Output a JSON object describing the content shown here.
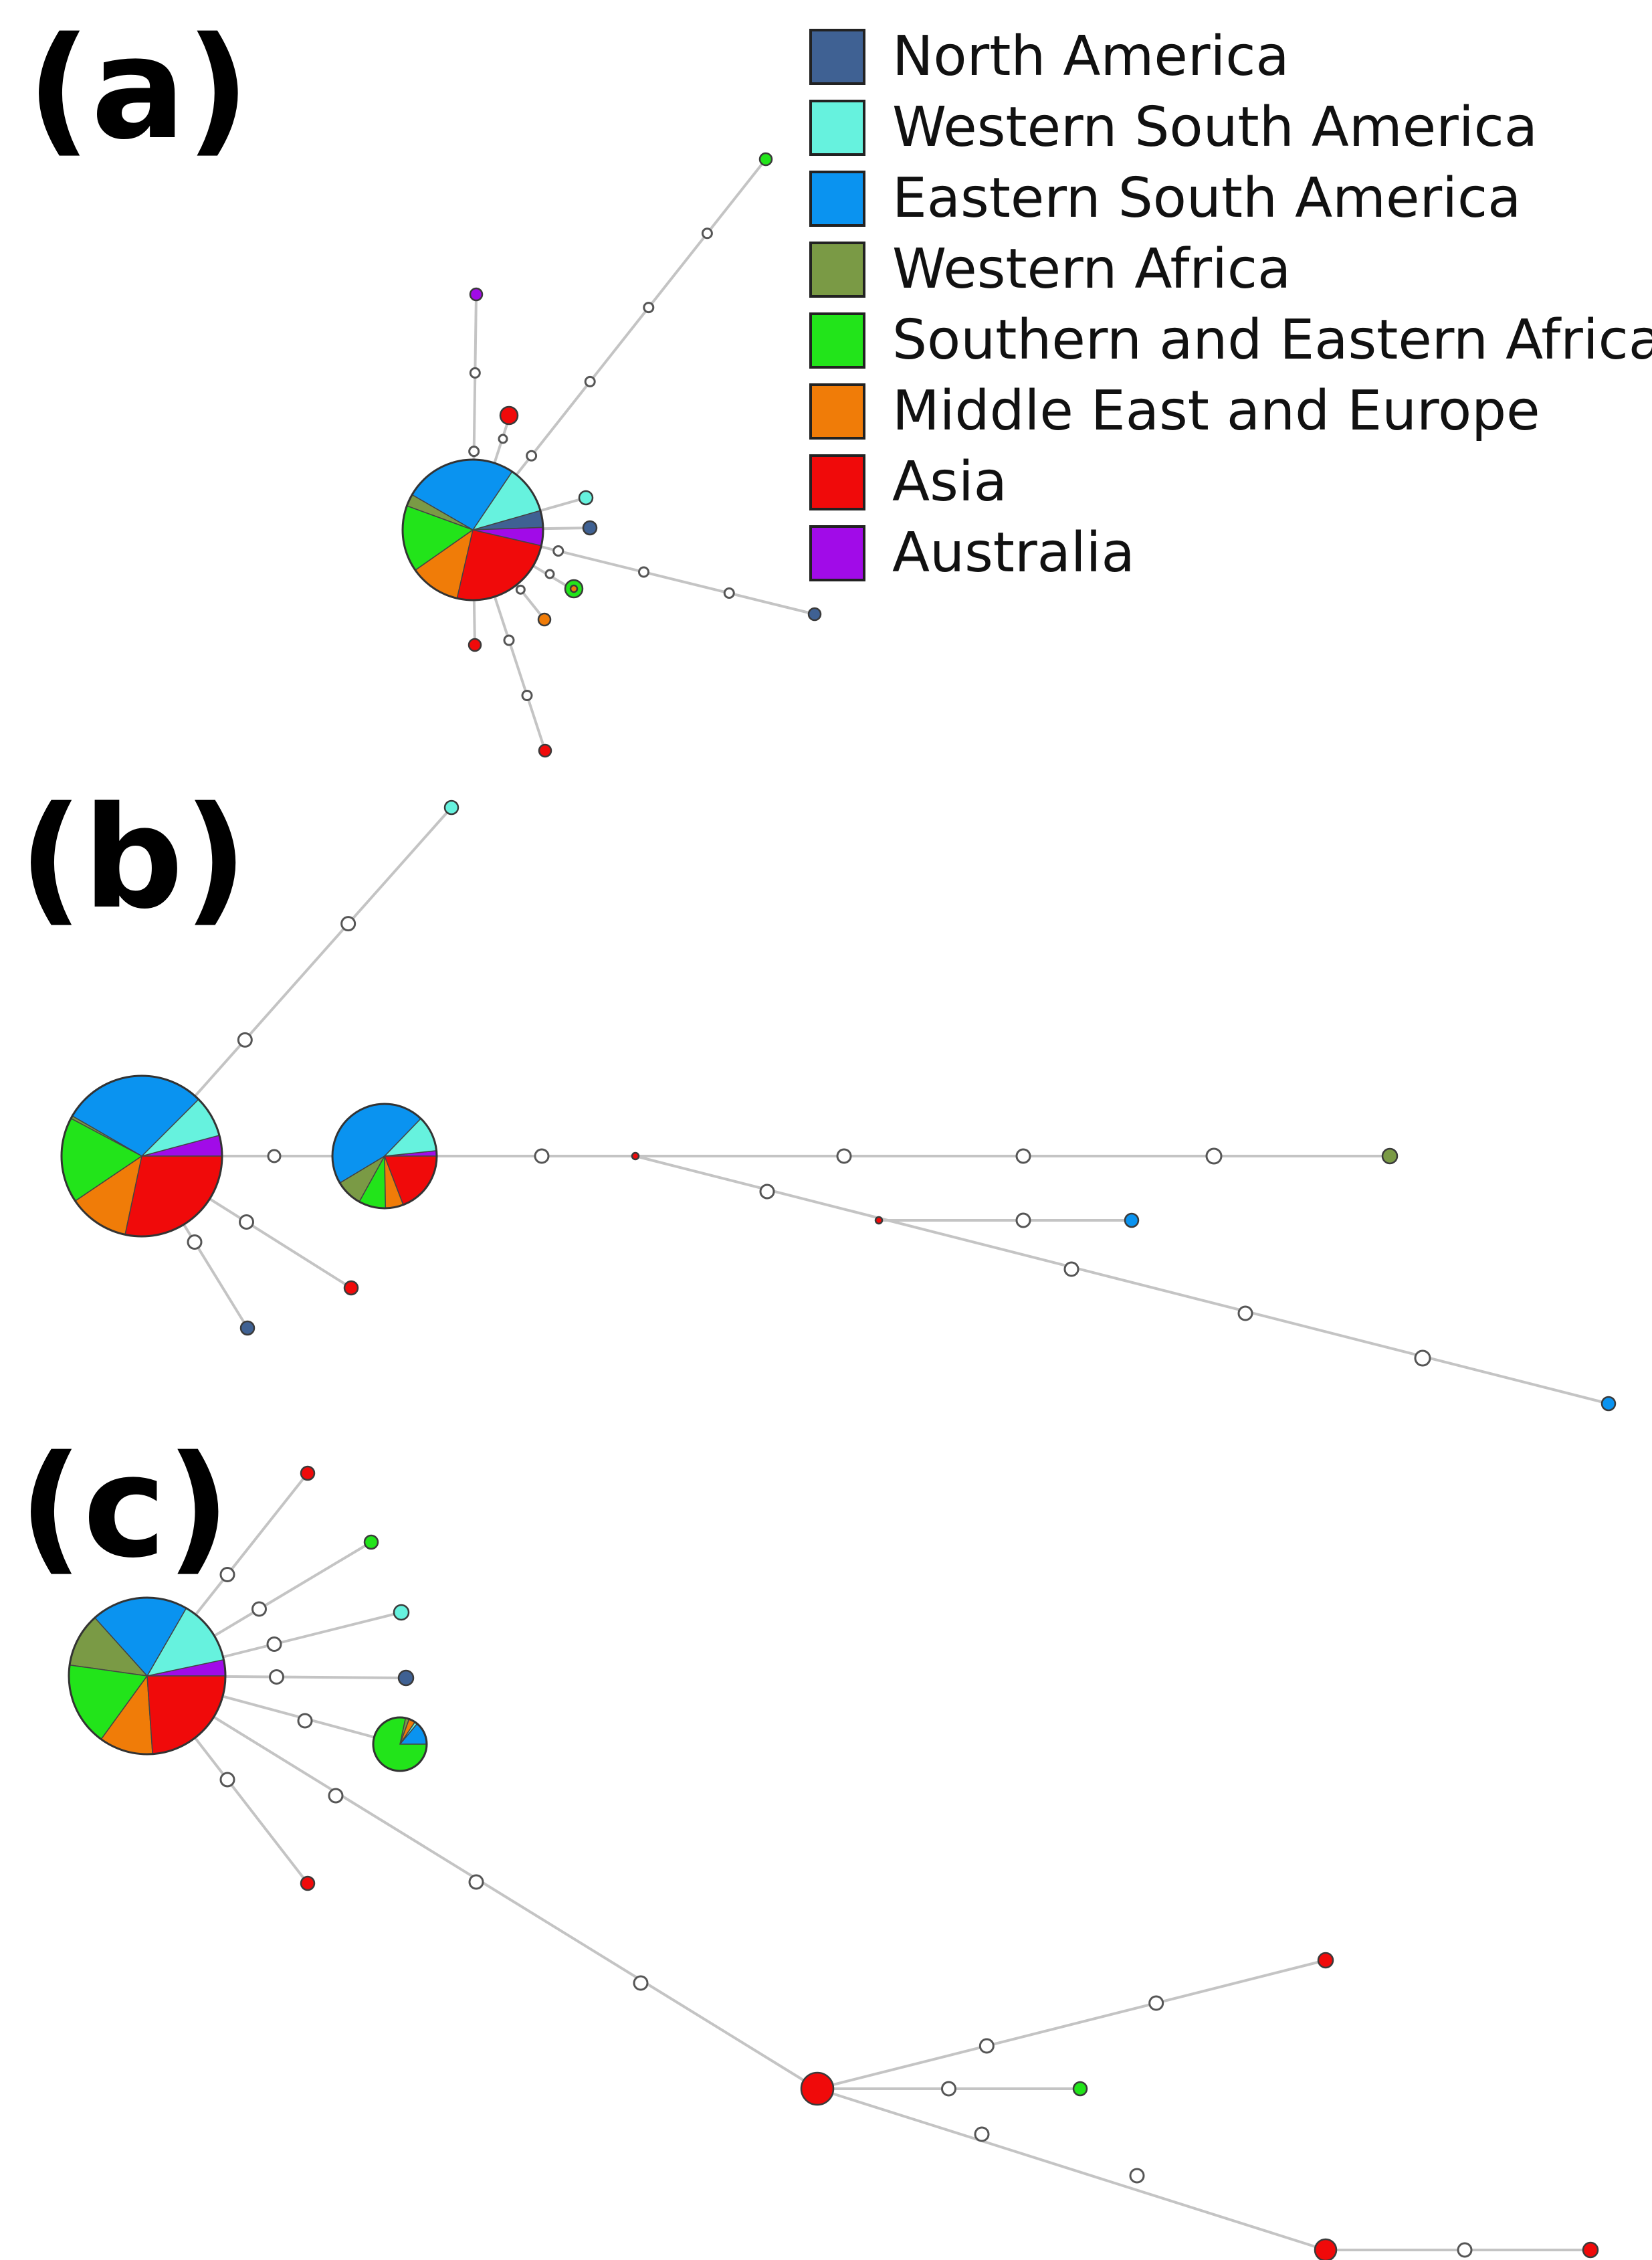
{
  "legend": {
    "items": [
      {
        "label": "North America",
        "color": "#3f6193"
      },
      {
        "label": "Western South America",
        "color": "#66f2de"
      },
      {
        "label": "Eastern South America",
        "color": "#0a93f0"
      },
      {
        "label": "Western Africa",
        "color": "#7a9a45"
      },
      {
        "label": "Southern and Eastern Africa",
        "color": "#22e41a"
      },
      {
        "label": "Middle East and Europe",
        "color": "#f07c08"
      },
      {
        "label": "Asia",
        "color": "#f00a0a"
      },
      {
        "label": "Australia",
        "color": "#a10be8"
      }
    ]
  },
  "panels": [
    {
      "label": "(a)"
    },
    {
      "label": "(b)"
    },
    {
      "label": "(c)"
    }
  ]
}
